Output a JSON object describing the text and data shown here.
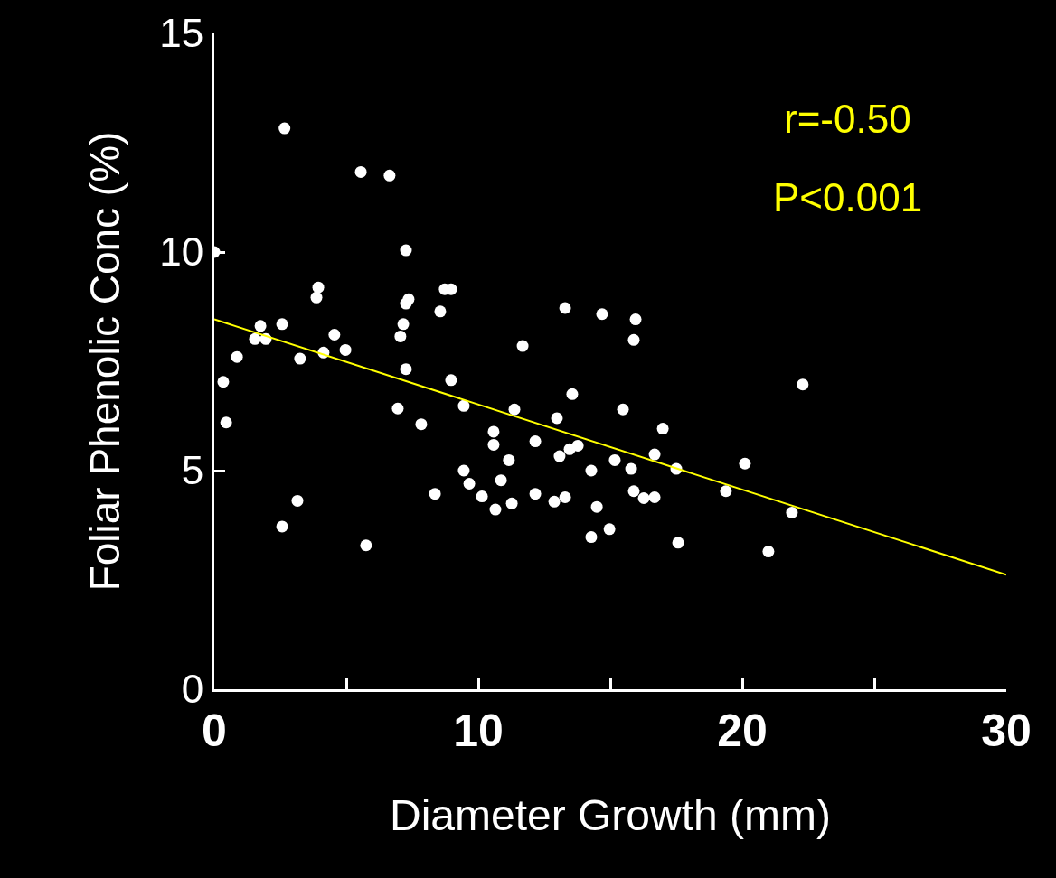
{
  "chart_data": {
    "type": "scatter",
    "xlabel": "Diameter Growth (mm)",
    "ylabel": "Foliar Phenolic Conc (%)",
    "annotations": [
      "r=-0.50",
      "P<0.001"
    ],
    "xlim": [
      0,
      30
    ],
    "ylim": [
      0,
      15
    ],
    "xticks": [
      0,
      {
        "value": 5,
        "label": null
      },
      10,
      {
        "value": 15,
        "label": null
      },
      20,
      {
        "value": 25,
        "label": null
      },
      30
    ],
    "yticks": [
      0,
      5,
      10,
      15
    ],
    "grid": false,
    "marker": "circle",
    "series": [
      {
        "color": "#ffffff",
        "x": [
          0.0,
          2.66,
          5.55,
          6.64,
          7.26,
          3.94,
          3.87,
          7.36,
          7.26,
          8.73,
          8.97,
          8.56,
          1.75,
          2.57,
          1.54,
          1.95,
          7.16,
          7.05,
          4.55,
          4.97,
          4.14,
          3.25,
          0.86,
          7.26,
          0.34,
          8.97,
          9.45,
          6.95,
          0.45,
          7.84,
          9.45,
          9.66,
          8.36,
          3.15,
          2.57,
          5.75,
          13.29,
          14.69,
          15.96,
          15.89,
          11.68,
          13.56,
          11.37,
          15.48,
          12.98,
          16.99,
          10.58,
          10.58,
          12.16,
          13.46,
          13.77,
          13.08,
          11.16,
          16.68,
          15.17,
          15.79,
          17.5,
          14.28,
          10.86,
          10.14,
          12.16,
          12.88,
          13.29,
          15.89,
          16.27,
          16.68,
          19.38,
          10.65,
          11.27,
          14.49,
          14.97,
          14.28,
          17.57,
          22.29,
          20.1,
          21.88,
          20.99
        ],
        "values": [
          10.0,
          12.83,
          11.83,
          11.75,
          10.04,
          9.19,
          8.96,
          8.92,
          8.82,
          9.15,
          9.15,
          8.64,
          8.31,
          8.35,
          8.01,
          8.01,
          8.35,
          8.07,
          8.11,
          7.76,
          7.7,
          7.56,
          7.6,
          7.32,
          7.03,
          7.07,
          6.48,
          6.42,
          6.1,
          6.06,
          5.0,
          4.7,
          4.47,
          4.31,
          3.72,
          3.29,
          8.72,
          8.58,
          8.46,
          7.99,
          7.85,
          6.75,
          6.4,
          6.4,
          6.2,
          5.96,
          5.89,
          5.59,
          5.67,
          5.49,
          5.57,
          5.33,
          5.24,
          5.37,
          5.24,
          5.04,
          5.04,
          5.0,
          4.78,
          4.41,
          4.47,
          4.29,
          4.39,
          4.53,
          4.37,
          4.39,
          4.53,
          4.11,
          4.25,
          4.17,
          3.66,
          3.48,
          3.35,
          6.97,
          5.16,
          4.04,
          3.15
        ]
      },
      {
        "type": "line",
        "color": "#ffff00",
        "line_style": "solid",
        "marker": "none",
        "x": [
          0,
          30
        ],
        "values": [
          8.46,
          2.62
        ]
      }
    ]
  }
}
